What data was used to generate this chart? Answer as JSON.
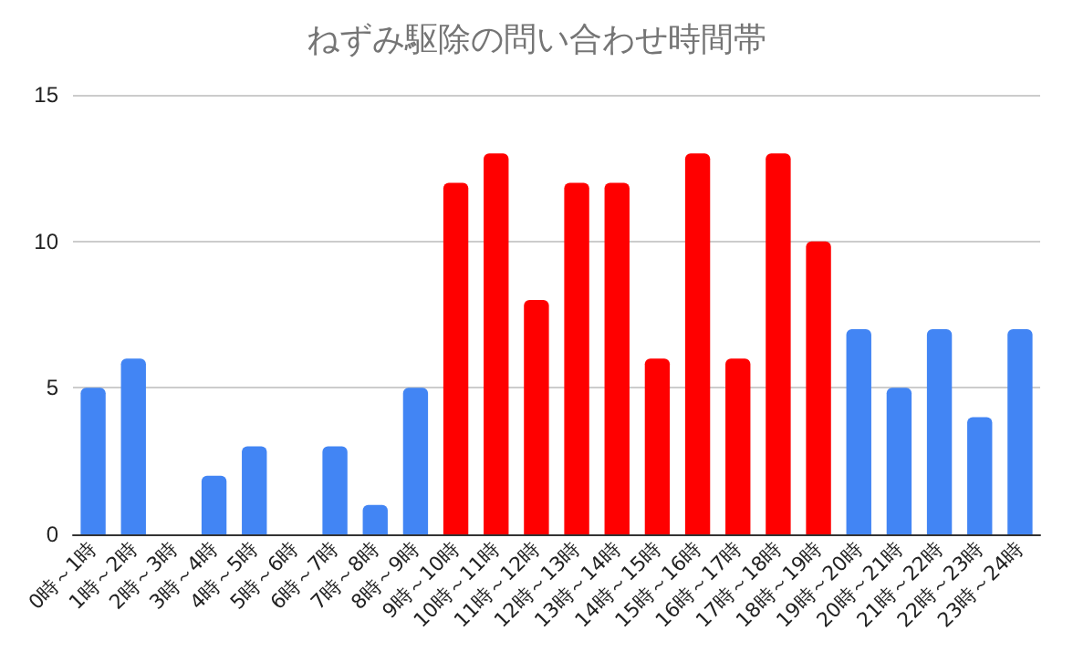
{
  "chart_data": {
    "type": "bar",
    "title": "ねずみ駆除の問い合わせ時間帯",
    "categories": [
      "0時～1時",
      "1時～2時",
      "2時～3時",
      "3時～4時",
      "4時～5時",
      "5時～6時",
      "6時～7時",
      "7時～8時",
      "8時～9時",
      "9時～10時",
      "10時～11時",
      "11時～12時",
      "12時～13時",
      "13時～14時",
      "14時～15時",
      "15時～16時",
      "16時～17時",
      "17時～18時",
      "18時～19時",
      "19時～20時",
      "20時～21時",
      "21時～22時",
      "22時～23時",
      "23時～24時"
    ],
    "values": [
      5,
      6,
      0,
      2,
      3,
      0,
      3,
      1,
      5,
      12,
      13,
      8,
      12,
      12,
      6,
      13,
      6,
      13,
      10,
      7,
      5,
      7,
      4,
      7
    ],
    "colors": [
      "#4285f4",
      "#4285f4",
      "#4285f4",
      "#4285f4",
      "#4285f4",
      "#4285f4",
      "#4285f4",
      "#4285f4",
      "#4285f4",
      "#ff0000",
      "#ff0000",
      "#ff0000",
      "#ff0000",
      "#ff0000",
      "#ff0000",
      "#ff0000",
      "#ff0000",
      "#ff0000",
      "#ff0000",
      "#4285f4",
      "#4285f4",
      "#4285f4",
      "#4285f4",
      "#4285f4"
    ],
    "ylim": [
      0,
      15
    ],
    "yticks": [
      0,
      5,
      10,
      15
    ],
    "grid": "y"
  }
}
